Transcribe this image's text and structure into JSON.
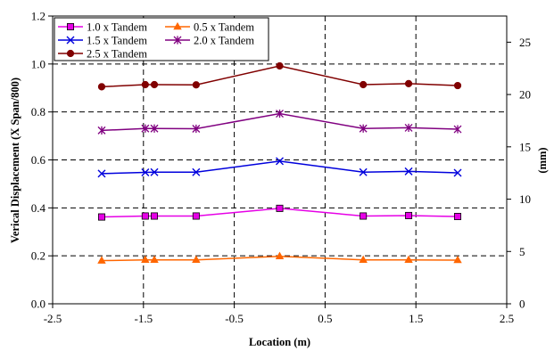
{
  "chart_data": {
    "type": "line",
    "xlabel": "Location (m)",
    "ylabel": "Verical Displacement (X Span/800)",
    "y2label": "(mm)",
    "xlim": [
      -2.5,
      2.5
    ],
    "ylim": [
      0,
      1.2
    ],
    "y2lim": [
      0,
      27.5
    ],
    "xticks": [
      "-2.5",
      "-1.5",
      "-0.5",
      "0.5",
      "1.5",
      "2.5"
    ],
    "xtick_values": [
      -2.5,
      -1.5,
      -0.5,
      0.5,
      1.5,
      2.5
    ],
    "yticks": [
      "0.0",
      "0.2",
      "0.4",
      "0.6",
      "0.8",
      "1.0",
      "1.2"
    ],
    "ytick_values": [
      0,
      0.2,
      0.4,
      0.6,
      0.8,
      1.0,
      1.2
    ],
    "y2ticks": [
      "0",
      "5",
      "10",
      "15",
      "20",
      "25"
    ],
    "y2tick_values": [
      0,
      5,
      10,
      15,
      20,
      25
    ],
    "grid": "dashed",
    "legend_position": "top-left",
    "x": [
      -1.96,
      -1.48,
      -1.38,
      -0.92,
      0.0,
      0.92,
      1.42,
      1.96
    ],
    "series": [
      {
        "name": "1.0 x Tandem",
        "color": "#e600e6",
        "marker": "square",
        "values": [
          0.362,
          0.366,
          0.366,
          0.366,
          0.398,
          0.366,
          0.368,
          0.364
        ]
      },
      {
        "name": "0.5 x Tandem",
        "color": "#ff6600",
        "marker": "triangle",
        "values": [
          0.18,
          0.183,
          0.183,
          0.183,
          0.198,
          0.183,
          0.183,
          0.182
        ]
      },
      {
        "name": "1.5 x Tandem",
        "color": "#0000dd",
        "marker": "x",
        "values": [
          0.543,
          0.548,
          0.549,
          0.549,
          0.595,
          0.549,
          0.552,
          0.546
        ]
      },
      {
        "name": "2.0 x Tandem",
        "color": "#800080",
        "marker": "asterisk",
        "values": [
          0.723,
          0.731,
          0.731,
          0.73,
          0.793,
          0.731,
          0.734,
          0.728
        ]
      },
      {
        "name": "2.5 x Tandem",
        "color": "#800000",
        "marker": "circle",
        "values": [
          0.905,
          0.914,
          0.914,
          0.913,
          0.992,
          0.914,
          0.918,
          0.91
        ]
      }
    ]
  }
}
